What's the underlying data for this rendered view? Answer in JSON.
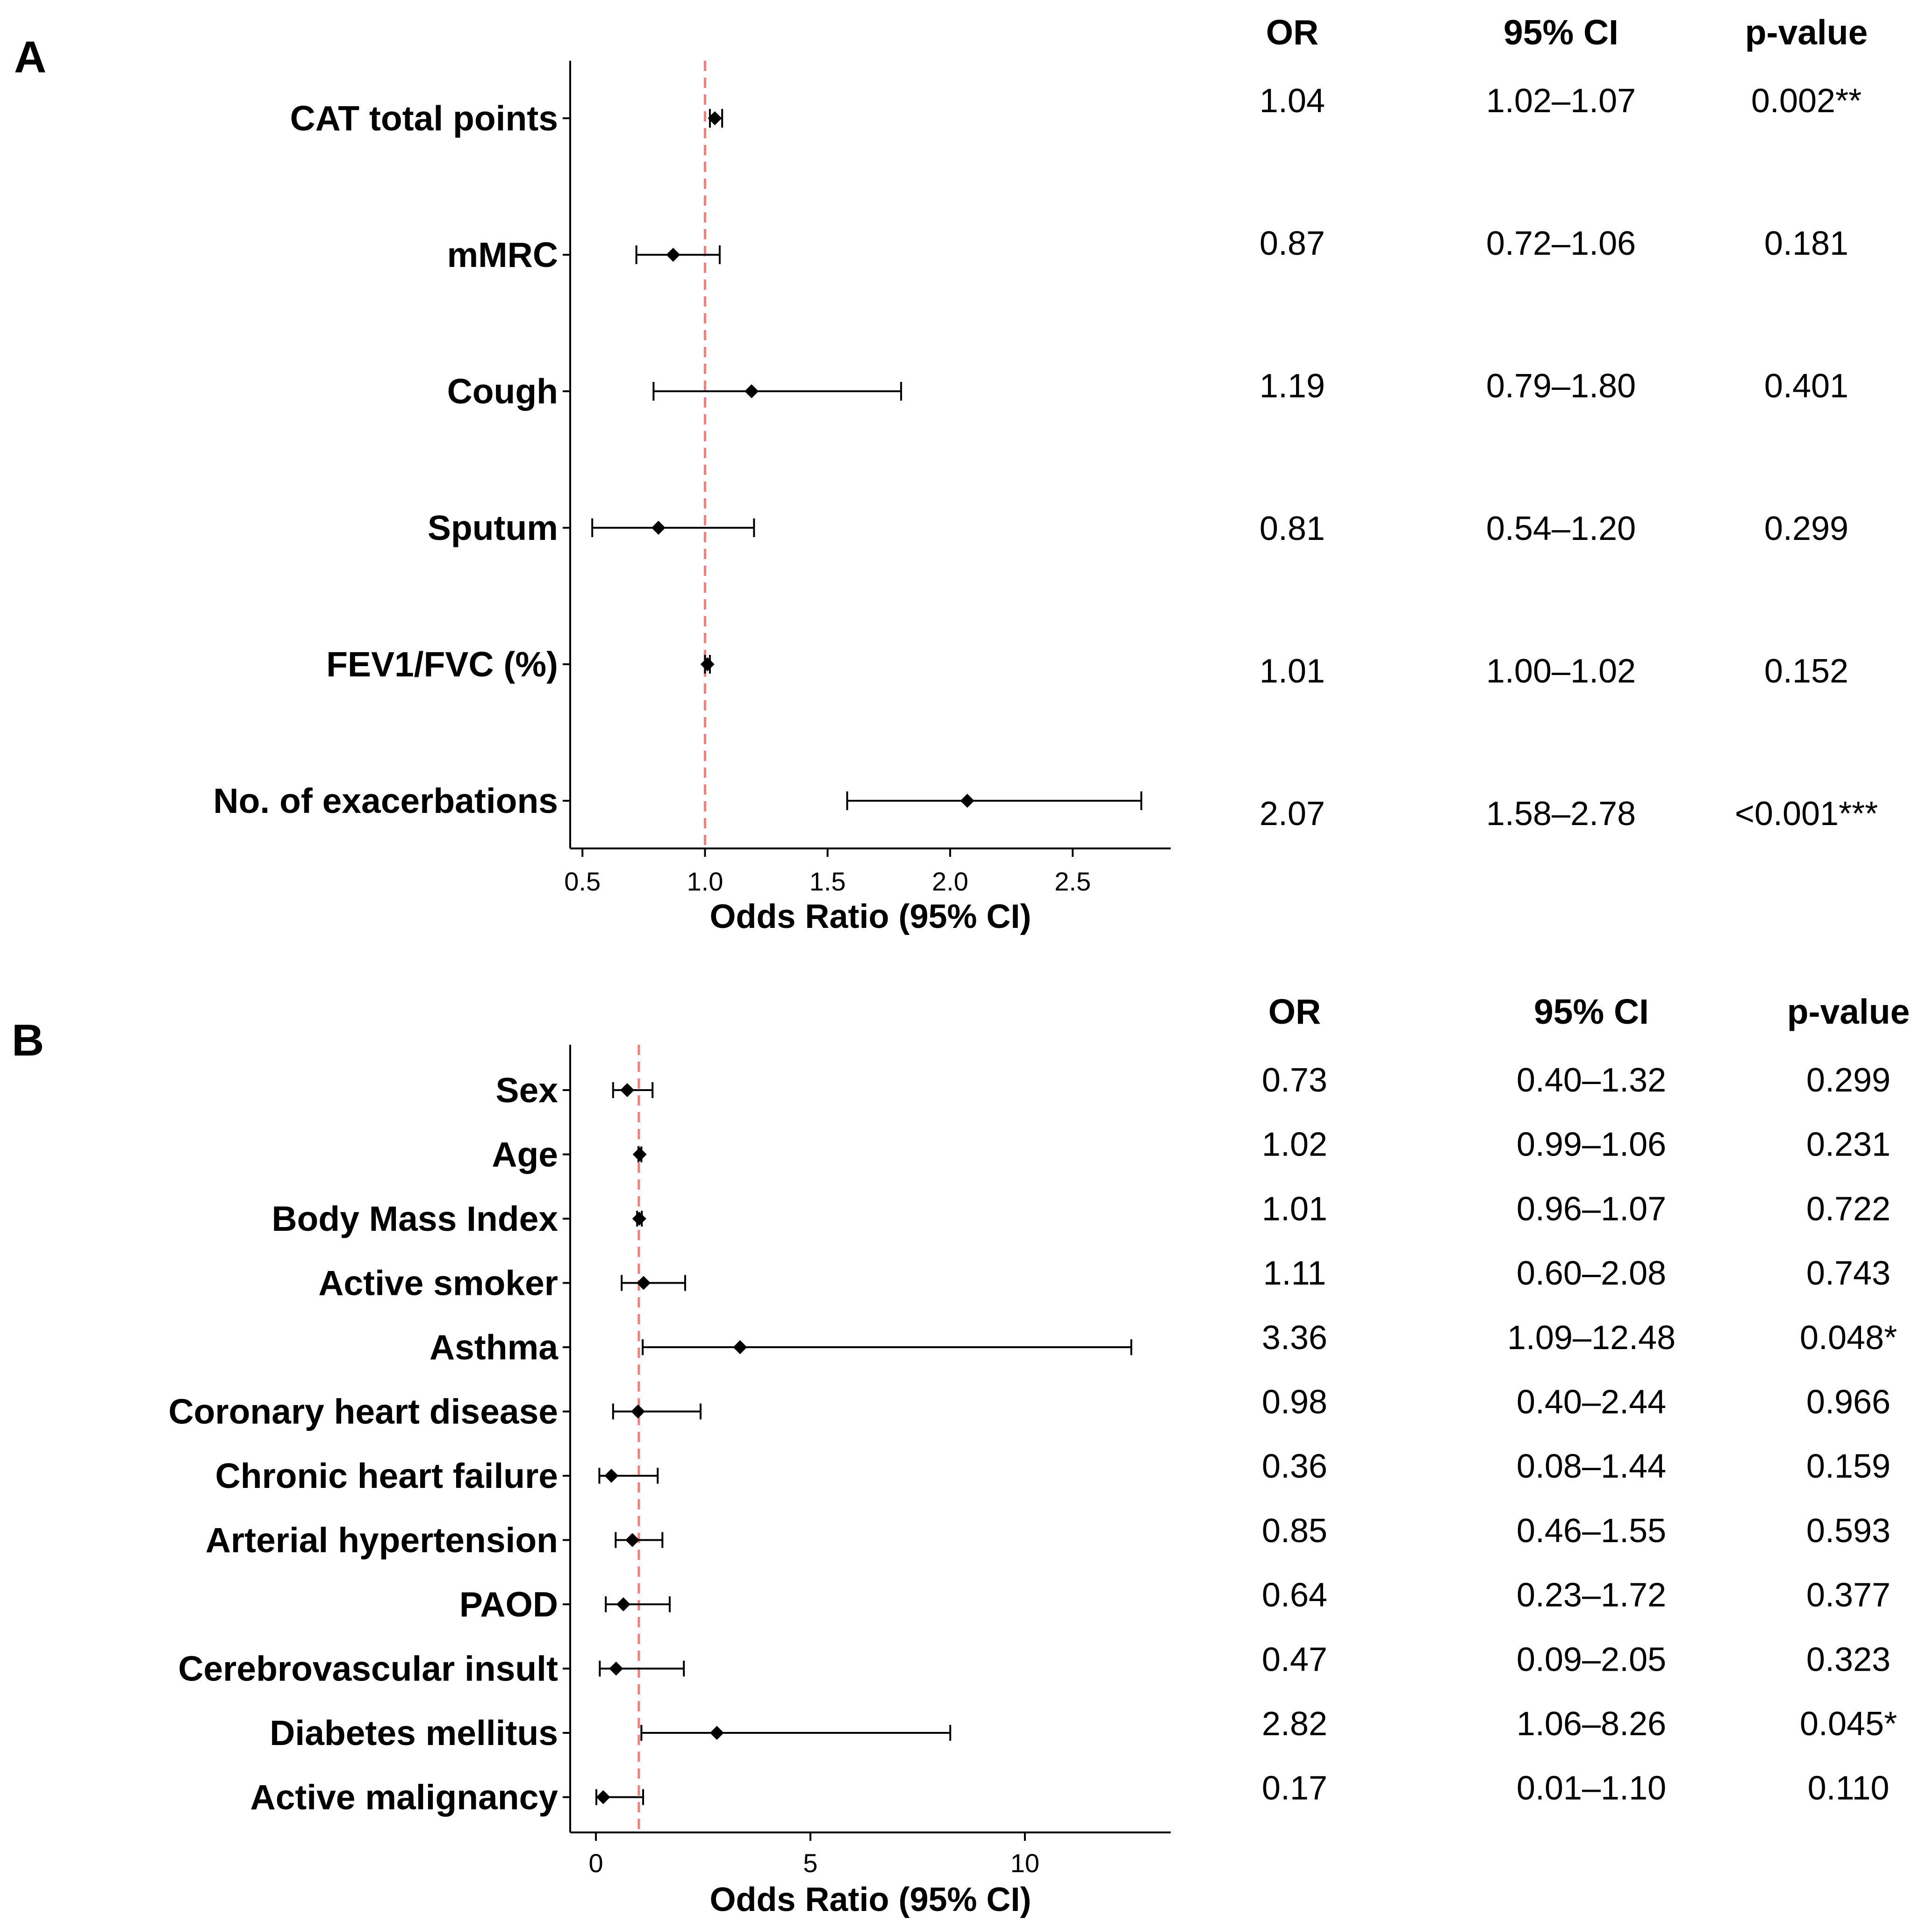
{
  "chart_data": [
    {
      "type": "forest",
      "panel": "A",
      "xlabel": "Odds Ratio (95% CI)",
      "xlim": [
        0.45,
        2.9
      ],
      "xticks": [
        0.5,
        1.0,
        1.5,
        2.0,
        2.5
      ],
      "xtick_labels": [
        "0.5",
        "1.0",
        "1.5",
        "2.0",
        "2.5"
      ],
      "reference_line": 1.0,
      "reference_color": "#f08080",
      "columns": [
        "OR",
        "95% CI",
        "p-value"
      ],
      "rows": [
        {
          "label": "CAT total points",
          "or": 1.04,
          "lo": 1.02,
          "hi": 1.07,
          "or_text": "1.04",
          "ci_text": "1.02–1.07",
          "p_text": "0.002**"
        },
        {
          "label": "mMRC",
          "or": 0.87,
          "lo": 0.72,
          "hi": 1.06,
          "or_text": "0.87",
          "ci_text": "0.72–1.06",
          "p_text": "0.181"
        },
        {
          "label": "Cough",
          "or": 1.19,
          "lo": 0.79,
          "hi": 1.8,
          "or_text": "1.19",
          "ci_text": "0.79–1.80",
          "p_text": "0.401"
        },
        {
          "label": "Sputum",
          "or": 0.81,
          "lo": 0.54,
          "hi": 1.2,
          "or_text": "0.81",
          "ci_text": "0.54–1.20",
          "p_text": "0.299"
        },
        {
          "label": "FEV1/FVC (%)",
          "or": 1.01,
          "lo": 1.0,
          "hi": 1.02,
          "or_text": "1.01",
          "ci_text": "1.00–1.02",
          "p_text": "0.152"
        },
        {
          "label": "No. of exacerbations",
          "or": 2.07,
          "lo": 1.58,
          "hi": 2.78,
          "or_text": "2.07",
          "ci_text": "1.58–2.78",
          "p_text": "<0.001***"
        }
      ]
    },
    {
      "type": "forest",
      "panel": "B",
      "xlabel": "Odds Ratio (95% CI)",
      "xlim": [
        -0.6,
        13.4
      ],
      "xticks": [
        0,
        5,
        10
      ],
      "xtick_labels": [
        "0",
        "5",
        "10"
      ],
      "reference_line": 1.0,
      "reference_color": "#f08080",
      "columns": [
        "OR",
        "95% CI",
        "p-value"
      ],
      "rows": [
        {
          "label": "Sex",
          "or": 0.73,
          "lo": 0.4,
          "hi": 1.32,
          "or_text": "0.73",
          "ci_text": "0.40–1.32",
          "p_text": "0.299"
        },
        {
          "label": "Age",
          "or": 1.02,
          "lo": 0.99,
          "hi": 1.06,
          "or_text": "1.02",
          "ci_text": "0.99–1.06",
          "p_text": "0.231"
        },
        {
          "label": "Body Mass Index",
          "or": 1.01,
          "lo": 0.96,
          "hi": 1.07,
          "or_text": "1.01",
          "ci_text": "0.96–1.07",
          "p_text": "0.722"
        },
        {
          "label": "Active smoker",
          "or": 1.11,
          "lo": 0.6,
          "hi": 2.08,
          "or_text": "1.11",
          "ci_text": "0.60–2.08",
          "p_text": "0.743"
        },
        {
          "label": "Asthma",
          "or": 3.36,
          "lo": 1.09,
          "hi": 12.48,
          "or_text": "3.36",
          "ci_text": "1.09–12.48",
          "p_text": "0.048*"
        },
        {
          "label": "Coronary heart disease",
          "or": 0.98,
          "lo": 0.4,
          "hi": 2.44,
          "or_text": "0.98",
          "ci_text": "0.40–2.44",
          "p_text": "0.966"
        },
        {
          "label": "Chronic heart failure",
          "or": 0.36,
          "lo": 0.08,
          "hi": 1.44,
          "or_text": "0.36",
          "ci_text": "0.08–1.44",
          "p_text": "0.159"
        },
        {
          "label": "Arterial hypertension",
          "or": 0.85,
          "lo": 0.46,
          "hi": 1.55,
          "or_text": "0.85",
          "ci_text": "0.46–1.55",
          "p_text": "0.593"
        },
        {
          "label": "PAOD",
          "or": 0.64,
          "lo": 0.23,
          "hi": 1.72,
          "or_text": "0.64",
          "ci_text": "0.23–1.72",
          "p_text": "0.377"
        },
        {
          "label": "Cerebrovascular insult",
          "or": 0.47,
          "lo": 0.09,
          "hi": 2.05,
          "or_text": "0.47",
          "ci_text": "0.09–2.05",
          "p_text": "0.323"
        },
        {
          "label": "Diabetes mellitus",
          "or": 2.82,
          "lo": 1.06,
          "hi": 8.26,
          "or_text": "2.82",
          "ci_text": "1.06–8.26",
          "p_text": "0.045*"
        },
        {
          "label": "Active malignancy",
          "or": 0.17,
          "lo": 0.01,
          "hi": 1.1,
          "or_text": "0.17",
          "ci_text": "0.01–1.10",
          "p_text": "0.110"
        }
      ]
    }
  ]
}
